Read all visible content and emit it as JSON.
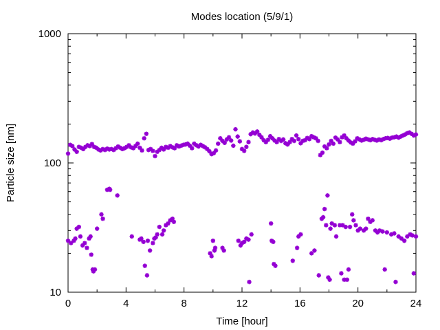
{
  "chart_data": {
    "type": "scatter",
    "title": "Modes location (5/9/1)",
    "xlabel": "Time [hour]",
    "ylabel": "Particle size [nm]",
    "xlim": [
      0,
      24
    ],
    "ylim": [
      10,
      1000
    ],
    "yscale": "log",
    "grid": false,
    "legend": "none",
    "xticks": [
      0,
      4,
      8,
      12,
      16,
      20,
      24
    ],
    "xtick_labels": [
      "0",
      "4",
      "8",
      "12",
      "16",
      "20",
      "24"
    ],
    "yticks": [
      10,
      100,
      1000
    ],
    "ytick_labels": [
      "10",
      "100",
      "1000"
    ],
    "marker_color": "#9400d3",
    "series": [
      {
        "points": [
          [
            0.0,
            118
          ],
          [
            0.15,
            138
          ],
          [
            0.3,
            135
          ],
          [
            0.45,
            127
          ],
          [
            0.6,
            122
          ],
          [
            0.75,
            133
          ],
          [
            0.9,
            131
          ],
          [
            1.05,
            128
          ],
          [
            1.2,
            133
          ],
          [
            1.35,
            137
          ],
          [
            1.5,
            135
          ],
          [
            1.65,
            140
          ],
          [
            1.8,
            133
          ],
          [
            1.95,
            131
          ],
          [
            2.1,
            127
          ],
          [
            2.25,
            125
          ],
          [
            2.4,
            128
          ],
          [
            2.55,
            126
          ],
          [
            2.7,
            129
          ],
          [
            2.85,
            127
          ],
          [
            3.0,
            128
          ],
          [
            3.15,
            126
          ],
          [
            3.3,
            130
          ],
          [
            3.45,
            134
          ],
          [
            3.6,
            131
          ],
          [
            3.75,
            128
          ],
          [
            3.9,
            130
          ],
          [
            4.05,
            133
          ],
          [
            4.2,
            137
          ],
          [
            4.35,
            132
          ],
          [
            4.5,
            130
          ],
          [
            4.65,
            135
          ],
          [
            4.8,
            141
          ],
          [
            4.95,
            131
          ],
          [
            5.1,
            125
          ],
          [
            5.25,
            155
          ],
          [
            5.4,
            168
          ],
          [
            5.55,
            126
          ],
          [
            5.7,
            128
          ],
          [
            5.85,
            124
          ],
          [
            6.0,
            113
          ],
          [
            6.15,
            122
          ],
          [
            6.3,
            126
          ],
          [
            6.45,
            131
          ],
          [
            6.6,
            127
          ],
          [
            6.75,
            133
          ],
          [
            6.9,
            131
          ],
          [
            7.05,
            135
          ],
          [
            7.2,
            132
          ],
          [
            7.35,
            130
          ],
          [
            7.5,
            137
          ],
          [
            7.65,
            134
          ],
          [
            7.8,
            136
          ],
          [
            7.95,
            138
          ],
          [
            8.1,
            139
          ],
          [
            8.25,
            141
          ],
          [
            8.4,
            136
          ],
          [
            8.55,
            130
          ],
          [
            8.7,
            141
          ],
          [
            8.85,
            137
          ],
          [
            9.0,
            134
          ],
          [
            9.15,
            138
          ],
          [
            9.3,
            135
          ],
          [
            9.45,
            132
          ],
          [
            9.6,
            128
          ],
          [
            9.75,
            123
          ],
          [
            9.9,
            117
          ],
          [
            10.05,
            119
          ],
          [
            10.2,
            125
          ],
          [
            10.35,
            141
          ],
          [
            10.5,
            155
          ],
          [
            10.65,
            148
          ],
          [
            10.8,
            143
          ],
          [
            10.95,
            152
          ],
          [
            11.1,
            158
          ],
          [
            11.25,
            149
          ],
          [
            11.4,
            136
          ],
          [
            11.55,
            182
          ],
          [
            11.7,
            160
          ],
          [
            11.85,
            147
          ],
          [
            12.0,
            128
          ],
          [
            12.15,
            124
          ],
          [
            12.3,
            133
          ],
          [
            12.45,
            145
          ],
          [
            12.6,
            167
          ],
          [
            12.75,
            172
          ],
          [
            12.9,
            169
          ],
          [
            13.05,
            175
          ],
          [
            13.2,
            165
          ],
          [
            13.35,
            158
          ],
          [
            13.5,
            150
          ],
          [
            13.65,
            145
          ],
          [
            13.8,
            151
          ],
          [
            13.95,
            161
          ],
          [
            14.1,
            155
          ],
          [
            14.25,
            149
          ],
          [
            14.4,
            145
          ],
          [
            14.55,
            153
          ],
          [
            14.7,
            148
          ],
          [
            14.85,
            152
          ],
          [
            15.0,
            142
          ],
          [
            15.15,
            139
          ],
          [
            15.3,
            145
          ],
          [
            15.45,
            153
          ],
          [
            15.6,
            148
          ],
          [
            15.75,
            163
          ],
          [
            15.9,
            153
          ],
          [
            16.05,
            142
          ],
          [
            16.2,
            148
          ],
          [
            16.35,
            150
          ],
          [
            16.5,
            156
          ],
          [
            16.65,
            153
          ],
          [
            16.8,
            161
          ],
          [
            16.95,
            158
          ],
          [
            17.1,
            155
          ],
          [
            17.25,
            148
          ],
          [
            17.4,
            115
          ],
          [
            17.55,
            120
          ],
          [
            17.7,
            134
          ],
          [
            17.85,
            130
          ],
          [
            18.0,
            139
          ],
          [
            18.15,
            148
          ],
          [
            18.3,
            141
          ],
          [
            18.45,
            157
          ],
          [
            18.6,
            152
          ],
          [
            18.75,
            145
          ],
          [
            18.9,
            158
          ],
          [
            19.05,
            163
          ],
          [
            19.2,
            155
          ],
          [
            19.35,
            149
          ],
          [
            19.5,
            144
          ],
          [
            19.65,
            141
          ],
          [
            19.8,
            147
          ],
          [
            19.95,
            155
          ],
          [
            20.1,
            152
          ],
          [
            20.25,
            149
          ],
          [
            20.4,
            151
          ],
          [
            20.55,
            154
          ],
          [
            20.7,
            152
          ],
          [
            20.85,
            150
          ],
          [
            21.0,
            153
          ],
          [
            21.15,
            151
          ],
          [
            21.3,
            149
          ],
          [
            21.45,
            152
          ],
          [
            21.6,
            150
          ],
          [
            21.75,
            153
          ],
          [
            21.9,
            155
          ],
          [
            22.05,
            156
          ],
          [
            22.2,
            154
          ],
          [
            22.35,
            157
          ],
          [
            22.5,
            158
          ],
          [
            22.65,
            160
          ],
          [
            22.8,
            157
          ],
          [
            22.95,
            160
          ],
          [
            23.1,
            163
          ],
          [
            23.25,
            166
          ],
          [
            23.4,
            170
          ],
          [
            23.55,
            172
          ],
          [
            23.7,
            168
          ],
          [
            23.85,
            163
          ],
          [
            24.0,
            166
          ]
        ]
      },
      {
        "points": [
          [
            0.0,
            25
          ],
          [
            0.2,
            24
          ],
          [
            0.4,
            25
          ],
          [
            0.5,
            26
          ],
          [
            0.6,
            31
          ],
          [
            0.75,
            32
          ],
          [
            0.85,
            27
          ],
          [
            1.0,
            23
          ],
          [
            1.15,
            24
          ],
          [
            1.3,
            22
          ],
          [
            1.45,
            26
          ],
          [
            1.55,
            27
          ],
          [
            1.6,
            19.5
          ],
          [
            1.7,
            15
          ],
          [
            1.75,
            14.5
          ],
          [
            1.85,
            15
          ],
          [
            2.0,
            31
          ],
          [
            2.3,
            40
          ],
          [
            2.4,
            37
          ],
          [
            2.7,
            62
          ],
          [
            2.85,
            63
          ],
          [
            2.9,
            62
          ],
          [
            3.4,
            56
          ],
          [
            4.4,
            27
          ],
          [
            4.95,
            25.5
          ],
          [
            5.05,
            26
          ],
          [
            5.2,
            24.5
          ],
          [
            5.3,
            16
          ],
          [
            5.45,
            13.5
          ],
          [
            5.5,
            25
          ],
          [
            5.65,
            21
          ],
          [
            5.85,
            24
          ],
          [
            5.95,
            26
          ],
          [
            6.05,
            26.5
          ],
          [
            6.15,
            28
          ],
          [
            6.3,
            32
          ],
          [
            6.5,
            28
          ],
          [
            6.6,
            30
          ],
          [
            6.75,
            33
          ],
          [
            6.9,
            34
          ],
          [
            7.05,
            36
          ],
          [
            7.2,
            37
          ],
          [
            7.3,
            35
          ],
          [
            9.8,
            20
          ],
          [
            9.9,
            19
          ],
          [
            10.0,
            25
          ],
          [
            10.1,
            21
          ],
          [
            10.15,
            22
          ],
          [
            10.65,
            22
          ],
          [
            10.75,
            21
          ],
          [
            11.75,
            25
          ],
          [
            11.9,
            23
          ],
          [
            12.0,
            24
          ],
          [
            12.15,
            24.5
          ],
          [
            12.3,
            26
          ],
          [
            12.45,
            25.5
          ],
          [
            12.5,
            12
          ],
          [
            12.65,
            28
          ],
          [
            14.0,
            34
          ],
          [
            14.05,
            25
          ],
          [
            14.15,
            24.5
          ],
          [
            14.2,
            16.5
          ],
          [
            14.3,
            16
          ],
          [
            15.5,
            17.5
          ],
          [
            15.8,
            22
          ],
          [
            15.9,
            27
          ],
          [
            16.05,
            28
          ],
          [
            16.8,
            20
          ],
          [
            17.0,
            21
          ],
          [
            17.3,
            13.5
          ],
          [
            17.5,
            37
          ],
          [
            17.6,
            38
          ],
          [
            17.7,
            44
          ],
          [
            17.8,
            33
          ],
          [
            17.9,
            56
          ],
          [
            17.95,
            13
          ],
          [
            18.05,
            12.5
          ],
          [
            18.1,
            31
          ],
          [
            18.2,
            34
          ],
          [
            18.4,
            33
          ],
          [
            18.5,
            27
          ],
          [
            18.75,
            33
          ],
          [
            18.85,
            14
          ],
          [
            18.95,
            33
          ],
          [
            19.05,
            12.5
          ],
          [
            19.15,
            32
          ],
          [
            19.25,
            12.5
          ],
          [
            19.35,
            15
          ],
          [
            19.45,
            32
          ],
          [
            19.6,
            40
          ],
          [
            19.7,
            36
          ],
          [
            19.85,
            33
          ],
          [
            20.0,
            30
          ],
          [
            20.15,
            31
          ],
          [
            20.4,
            30
          ],
          [
            20.55,
            31
          ],
          [
            20.7,
            37
          ],
          [
            20.85,
            35
          ],
          [
            21.0,
            36
          ],
          [
            21.2,
            30
          ],
          [
            21.35,
            29
          ],
          [
            21.5,
            30
          ],
          [
            21.7,
            29.5
          ],
          [
            21.85,
            15
          ],
          [
            22.0,
            29
          ],
          [
            22.3,
            28
          ],
          [
            22.5,
            28.5
          ],
          [
            22.6,
            12
          ],
          [
            22.8,
            27
          ],
          [
            23.0,
            26
          ],
          [
            23.2,
            25
          ],
          [
            23.4,
            27
          ],
          [
            23.6,
            28
          ],
          [
            23.75,
            27.5
          ],
          [
            23.85,
            14
          ],
          [
            24.0,
            27
          ]
        ]
      }
    ]
  }
}
